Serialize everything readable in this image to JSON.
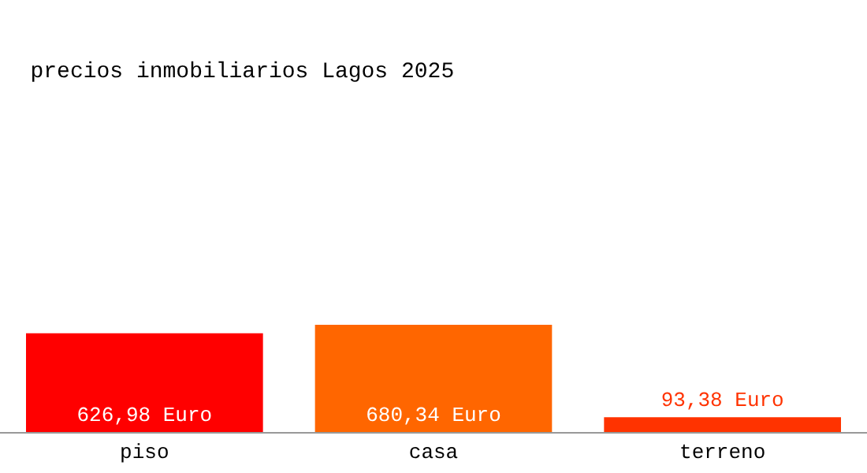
{
  "chart_data": {
    "type": "bar",
    "title": "precios inmobiliarios Lagos 2025",
    "categories": [
      "piso",
      "casa",
      "terreno"
    ],
    "values": [
      626.98,
      680.34,
      93.38
    ],
    "colors": [
      "#ff0000",
      "#ff6600",
      "#ff3300"
    ],
    "value_labels": [
      "626,98 Euro",
      "680,34 Euro",
      "93,38 Euro"
    ]
  }
}
